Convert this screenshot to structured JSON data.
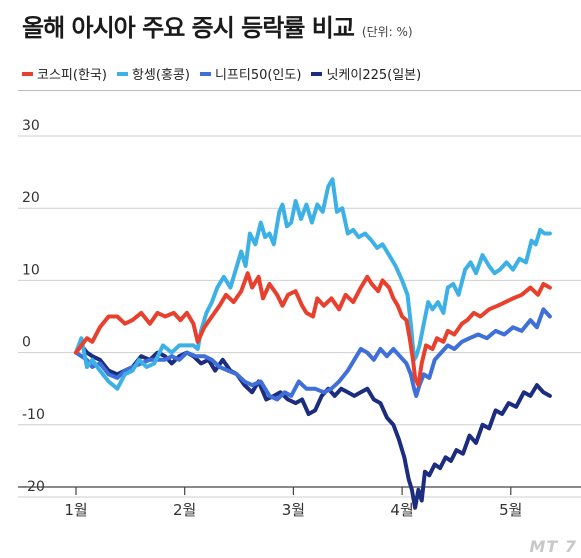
{
  "title": "올해 아시아 주요 증시 등락률 비교",
  "unit": "(단위: %)",
  "watermark": "MT 7",
  "chart_data": {
    "type": "line",
    "xlabel": "",
    "ylabel": "",
    "ylim": [
      -20,
      30
    ],
    "yticks": [
      30,
      20,
      10,
      0,
      -10,
      -20
    ],
    "xticks": [
      "1월",
      "2월",
      "3월",
      "4월",
      "5월"
    ],
    "grid": true,
    "legend": "top",
    "series": [
      {
        "name": "코스피(한국)",
        "color": "#e8402d",
        "values": [
          [
            0.0,
            0.0
          ],
          [
            0.05,
            1.0
          ],
          [
            0.1,
            2.0
          ],
          [
            0.15,
            1.5
          ],
          [
            0.22,
            3.5
          ],
          [
            0.3,
            5.0
          ],
          [
            0.38,
            5.0
          ],
          [
            0.45,
            4.0
          ],
          [
            0.52,
            4.5
          ],
          [
            0.6,
            5.5
          ],
          [
            0.68,
            4.0
          ],
          [
            0.75,
            5.5
          ],
          [
            0.82,
            5.0
          ],
          [
            0.9,
            5.5
          ],
          [
            0.96,
            4.5
          ],
          [
            1.02,
            5.5
          ],
          [
            1.08,
            4.0
          ],
          [
            1.12,
            1.5
          ],
          [
            1.18,
            3.5
          ],
          [
            1.25,
            5.0
          ],
          [
            1.32,
            6.5
          ],
          [
            1.38,
            8.0
          ],
          [
            1.45,
            7.0
          ],
          [
            1.52,
            8.5
          ],
          [
            1.58,
            11.0
          ],
          [
            1.62,
            9.0
          ],
          [
            1.68,
            10.5
          ],
          [
            1.72,
            7.5
          ],
          [
            1.78,
            9.5
          ],
          [
            1.85,
            8.0
          ],
          [
            1.9,
            6.5
          ],
          [
            1.95,
            8.0
          ],
          [
            2.02,
            8.5
          ],
          [
            2.08,
            6.5
          ],
          [
            2.12,
            5.5
          ],
          [
            2.18,
            5.0
          ],
          [
            2.22,
            7.5
          ],
          [
            2.28,
            6.5
          ],
          [
            2.35,
            7.5
          ],
          [
            2.42,
            6.0
          ],
          [
            2.48,
            8.0
          ],
          [
            2.55,
            7.0
          ],
          [
            2.62,
            9.0
          ],
          [
            2.68,
            10.5
          ],
          [
            2.72,
            9.5
          ],
          [
            2.78,
            8.5
          ],
          [
            2.82,
            10.0
          ],
          [
            2.88,
            9.0
          ],
          [
            2.92,
            7.5
          ],
          [
            2.96,
            6.5
          ],
          [
            3.0,
            5.0
          ],
          [
            3.04,
            4.5
          ],
          [
            3.07,
            2.0
          ],
          [
            3.1,
            -1.0
          ],
          [
            3.12,
            -3.5
          ],
          [
            3.15,
            -4.5
          ],
          [
            3.18,
            -1.5
          ],
          [
            3.22,
            1.0
          ],
          [
            3.28,
            0.5
          ],
          [
            3.32,
            2.0
          ],
          [
            3.38,
            1.5
          ],
          [
            3.42,
            3.0
          ],
          [
            3.48,
            2.5
          ],
          [
            3.55,
            4.0
          ],
          [
            3.6,
            4.5
          ],
          [
            3.66,
            5.5
          ],
          [
            3.72,
            5.0
          ],
          [
            3.8,
            6.0
          ],
          [
            3.88,
            6.5
          ],
          [
            3.95,
            7.0
          ],
          [
            4.02,
            7.5
          ],
          [
            4.1,
            8.0
          ],
          [
            4.18,
            9.0
          ],
          [
            4.25,
            8.0
          ],
          [
            4.3,
            9.5
          ],
          [
            4.36,
            9.0
          ]
        ]
      },
      {
        "name": "항셍(홍콩)",
        "color": "#3db1e6",
        "values": [
          [
            0.0,
            0.0
          ],
          [
            0.05,
            2.0
          ],
          [
            0.1,
            -2.0
          ],
          [
            0.15,
            -1.0
          ],
          [
            0.22,
            -2.5
          ],
          [
            0.3,
            -4.0
          ],
          [
            0.38,
            -5.0
          ],
          [
            0.45,
            -3.0
          ],
          [
            0.52,
            -2.5
          ],
          [
            0.58,
            -1.0
          ],
          [
            0.65,
            -2.0
          ],
          [
            0.72,
            -1.5
          ],
          [
            0.8,
            1.0
          ],
          [
            0.88,
            0.0
          ],
          [
            0.95,
            1.0
          ],
          [
            1.02,
            1.0
          ],
          [
            1.08,
            1.0
          ],
          [
            1.12,
            0.5
          ],
          [
            1.15,
            3.0
          ],
          [
            1.2,
            5.5
          ],
          [
            1.25,
            7.0
          ],
          [
            1.3,
            9.0
          ],
          [
            1.36,
            10.5
          ],
          [
            1.42,
            9.0
          ],
          [
            1.48,
            12.0
          ],
          [
            1.52,
            14.0
          ],
          [
            1.56,
            12.0
          ],
          [
            1.6,
            16.5
          ],
          [
            1.65,
            15.0
          ],
          [
            1.7,
            18.0
          ],
          [
            1.74,
            16.0
          ],
          [
            1.78,
            16.5
          ],
          [
            1.82,
            15.0
          ],
          [
            1.87,
            19.5
          ],
          [
            1.9,
            20.5
          ],
          [
            1.94,
            17.5
          ],
          [
            1.98,
            18.0
          ],
          [
            2.02,
            21.0
          ],
          [
            2.07,
            18.5
          ],
          [
            2.12,
            20.5
          ],
          [
            2.17,
            18.0
          ],
          [
            2.22,
            20.5
          ],
          [
            2.27,
            19.5
          ],
          [
            2.32,
            23.0
          ],
          [
            2.36,
            24.0
          ],
          [
            2.4,
            19.5
          ],
          [
            2.45,
            20.0
          ],
          [
            2.5,
            16.5
          ],
          [
            2.55,
            17.0
          ],
          [
            2.6,
            16.0
          ],
          [
            2.66,
            16.5
          ],
          [
            2.72,
            15.5
          ],
          [
            2.77,
            14.5
          ],
          [
            2.82,
            15.0
          ],
          [
            2.88,
            13.5
          ],
          [
            2.94,
            12.0
          ],
          [
            3.0,
            10.0
          ],
          [
            3.05,
            8.0
          ],
          [
            3.08,
            4.0
          ],
          [
            3.11,
            -1.0
          ],
          [
            3.13,
            -0.5
          ],
          [
            3.16,
            1.0
          ],
          [
            3.2,
            4.0
          ],
          [
            3.24,
            7.0
          ],
          [
            3.28,
            6.0
          ],
          [
            3.33,
            7.0
          ],
          [
            3.38,
            5.5
          ],
          [
            3.42,
            9.0
          ],
          [
            3.47,
            9.5
          ],
          [
            3.52,
            8.0
          ],
          [
            3.58,
            11.5
          ],
          [
            3.63,
            12.5
          ],
          [
            3.68,
            11.0
          ],
          [
            3.74,
            13.5
          ],
          [
            3.8,
            12.0
          ],
          [
            3.85,
            11.0
          ],
          [
            3.9,
            11.5
          ],
          [
            3.96,
            12.5
          ],
          [
            4.02,
            11.5
          ],
          [
            4.08,
            13.0
          ],
          [
            4.14,
            12.5
          ],
          [
            4.19,
            15.5
          ],
          [
            4.23,
            15.0
          ],
          [
            4.27,
            17.0
          ],
          [
            4.31,
            16.5
          ],
          [
            4.36,
            16.5
          ]
        ]
      },
      {
        "name": "니프티50(인도)",
        "color": "#3f6fd8",
        "values": [
          [
            0.0,
            0.0
          ],
          [
            0.05,
            -0.5
          ],
          [
            0.1,
            -1.0
          ],
          [
            0.15,
            -2.0
          ],
          [
            0.22,
            -1.5
          ],
          [
            0.3,
            -3.0
          ],
          [
            0.38,
            -3.5
          ],
          [
            0.45,
            -2.5
          ],
          [
            0.52,
            -2.0
          ],
          [
            0.6,
            -1.5
          ],
          [
            0.68,
            -1.0
          ],
          [
            0.75,
            -1.0
          ],
          [
            0.82,
            -1.0
          ],
          [
            0.88,
            -0.5
          ],
          [
            0.95,
            -1.0
          ],
          [
            1.02,
            0.0
          ],
          [
            1.1,
            -0.5
          ],
          [
            1.18,
            -0.5
          ],
          [
            1.25,
            -1.0
          ],
          [
            1.32,
            -2.0
          ],
          [
            1.4,
            -2.5
          ],
          [
            1.48,
            -3.0
          ],
          [
            1.55,
            -4.0
          ],
          [
            1.62,
            -4.5
          ],
          [
            1.7,
            -4.0
          ],
          [
            1.78,
            -6.0
          ],
          [
            1.85,
            -6.5
          ],
          [
            1.92,
            -5.5
          ],
          [
            1.98,
            -6.0
          ],
          [
            2.05,
            -4.0
          ],
          [
            2.12,
            -5.0
          ],
          [
            2.2,
            -5.0
          ],
          [
            2.28,
            -5.5
          ],
          [
            2.35,
            -5.0
          ],
          [
            2.42,
            -4.0
          ],
          [
            2.5,
            -2.5
          ],
          [
            2.56,
            -1.0
          ],
          [
            2.62,
            0.5
          ],
          [
            2.68,
            0.0
          ],
          [
            2.74,
            -1.0
          ],
          [
            2.8,
            0.5
          ],
          [
            2.86,
            -0.5
          ],
          [
            2.92,
            0.5
          ],
          [
            2.98,
            -0.5
          ],
          [
            3.04,
            -1.5
          ],
          [
            3.08,
            -3.0
          ],
          [
            3.11,
            -5.0
          ],
          [
            3.13,
            -6.0
          ],
          [
            3.16,
            -4.5
          ],
          [
            3.2,
            -3.0
          ],
          [
            3.25,
            -3.5
          ],
          [
            3.3,
            -1.0
          ],
          [
            3.36,
            0.0
          ],
          [
            3.42,
            1.0
          ],
          [
            3.48,
            0.5
          ],
          [
            3.55,
            1.5
          ],
          [
            3.62,
            2.0
          ],
          [
            3.7,
            2.5
          ],
          [
            3.78,
            2.0
          ],
          [
            3.86,
            3.0
          ],
          [
            3.94,
            2.5
          ],
          [
            4.02,
            3.5
          ],
          [
            4.1,
            3.0
          ],
          [
            4.18,
            4.5
          ],
          [
            4.24,
            3.5
          ],
          [
            4.3,
            6.0
          ],
          [
            4.36,
            5.0
          ]
        ]
      },
      {
        "name": "닛케이225(일본)",
        "color": "#1c2d80",
        "values": [
          [
            0.0,
            0.0
          ],
          [
            0.05,
            1.0
          ],
          [
            0.1,
            0.0
          ],
          [
            0.15,
            -0.5
          ],
          [
            0.22,
            -1.0
          ],
          [
            0.3,
            -2.5
          ],
          [
            0.38,
            -3.0
          ],
          [
            0.45,
            -2.5
          ],
          [
            0.52,
            -2.0
          ],
          [
            0.6,
            -0.5
          ],
          [
            0.68,
            -1.0
          ],
          [
            0.75,
            0.0
          ],
          [
            0.82,
            -0.5
          ],
          [
            0.88,
            -1.5
          ],
          [
            0.95,
            -0.5
          ],
          [
            1.02,
            0.0
          ],
          [
            1.08,
            -0.5
          ],
          [
            1.15,
            -1.5
          ],
          [
            1.22,
            -1.0
          ],
          [
            1.28,
            -2.5
          ],
          [
            1.35,
            -1.0
          ],
          [
            1.42,
            -2.5
          ],
          [
            1.48,
            -3.0
          ],
          [
            1.55,
            -4.5
          ],
          [
            1.62,
            -5.5
          ],
          [
            1.68,
            -4.0
          ],
          [
            1.75,
            -6.5
          ],
          [
            1.82,
            -6.0
          ],
          [
            1.88,
            -5.5
          ],
          [
            1.95,
            -6.5
          ],
          [
            2.02,
            -7.0
          ],
          [
            2.08,
            -6.5
          ],
          [
            2.14,
            -8.5
          ],
          [
            2.2,
            -8.0
          ],
          [
            2.26,
            -6.0
          ],
          [
            2.32,
            -5.0
          ],
          [
            2.38,
            -6.0
          ],
          [
            2.44,
            -5.0
          ],
          [
            2.5,
            -5.5
          ],
          [
            2.56,
            -6.0
          ],
          [
            2.62,
            -5.5
          ],
          [
            2.68,
            -5.0
          ],
          [
            2.74,
            -6.5
          ],
          [
            2.8,
            -7.0
          ],
          [
            2.86,
            -9.0
          ],
          [
            2.92,
            -10.0
          ],
          [
            2.97,
            -12.0
          ],
          [
            3.02,
            -14.5
          ],
          [
            3.06,
            -17.5
          ],
          [
            3.09,
            -19.0
          ],
          [
            3.12,
            -21.5
          ],
          [
            3.15,
            -19.0
          ],
          [
            3.18,
            -20.5
          ],
          [
            3.21,
            -16.5
          ],
          [
            3.25,
            -17.0
          ],
          [
            3.3,
            -15.5
          ],
          [
            3.35,
            -16.0
          ],
          [
            3.4,
            -14.5
          ],
          [
            3.45,
            -15.0
          ],
          [
            3.5,
            -13.5
          ],
          [
            3.56,
            -14.0
          ],
          [
            3.62,
            -11.5
          ],
          [
            3.68,
            -12.5
          ],
          [
            3.74,
            -10.0
          ],
          [
            3.8,
            -10.5
          ],
          [
            3.86,
            -8.0
          ],
          [
            3.92,
            -8.5
          ],
          [
            3.98,
            -7.0
          ],
          [
            4.05,
            -7.5
          ],
          [
            4.12,
            -5.5
          ],
          [
            4.18,
            -6.0
          ],
          [
            4.24,
            -4.5
          ],
          [
            4.3,
            -5.5
          ],
          [
            4.36,
            -6.0
          ]
        ]
      }
    ]
  }
}
